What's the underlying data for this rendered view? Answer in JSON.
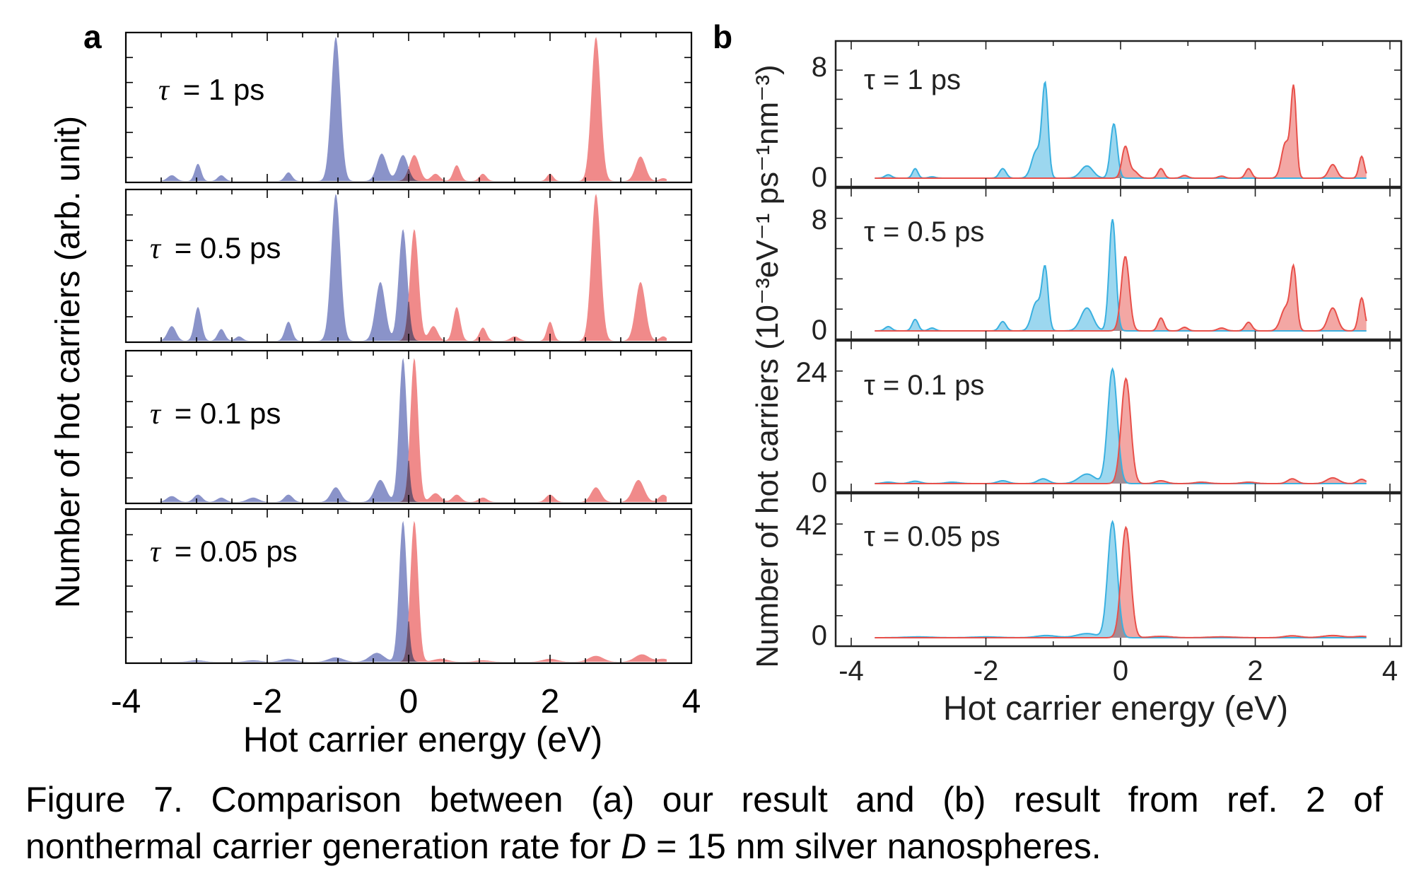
{
  "panels": [
    {
      "letter": "a",
      "ylabel": "Number of hot carriers (arb. unit)",
      "xlabel": "Hot carrier energy (eV)",
      "xticks": [
        "-4",
        "-2",
        "0",
        "2",
        "4"
      ],
      "subplots": [
        {
          "tau_symbol": "τ",
          "tau_rest": "= 1 ps"
        },
        {
          "tau_symbol": "τ",
          "tau_rest": "= 0.5 ps"
        },
        {
          "tau_symbol": "τ",
          "tau_rest": "= 0.1 ps"
        },
        {
          "tau_symbol": "τ",
          "tau_rest": "= 0.05 ps"
        }
      ]
    },
    {
      "letter": "b",
      "ylabel": "Number of hot carriers (10⁻³eV⁻¹ ps⁻¹nm⁻³)",
      "xlabel": "Hot carrier energy (eV)",
      "xticks": [
        "-4",
        "-2",
        "0",
        "2",
        "4"
      ],
      "subplots": [
        {
          "tau_label": "τ = 1 ps",
          "ytick_top": "8",
          "ytick_zero": "0"
        },
        {
          "tau_label": "τ = 0.5 ps",
          "ytick_top": "8",
          "ytick_zero": "0"
        },
        {
          "tau_label": "τ = 0.1 ps",
          "ytick_top": "24",
          "ytick_zero": "0"
        },
        {
          "tau_label": "τ = 0.05 ps",
          "ytick_top": "42",
          "ytick_zero": "0"
        }
      ]
    }
  ],
  "caption": {
    "line1": [
      "Figure",
      "7.",
      "Comparison",
      "between",
      "(a)",
      "our",
      "result",
      "and",
      "(b)",
      "result",
      "from",
      "ref.",
      "2",
      "of"
    ],
    "line2_before": "nonthermal carrier generation rate for ",
    "line2_italic": "D",
    "line2_after": " = 15 nm silver nanospheres."
  },
  "chart_data": [
    {
      "type": "area",
      "panel": "a",
      "xlabel": "Hot carrier energy (eV)",
      "ylabel": "Number of hot carriers (arb. unit)",
      "xlim": [
        -4,
        4
      ],
      "colors": {
        "hole": "#8a93c9",
        "electron": "#f08a8a",
        "overlap": "#5a4a6a"
      },
      "subplots": [
        {
          "tau_ps": 1,
          "ylim": [
            0,
            1
          ],
          "series": [
            {
              "name": "",
              "kind": "hole",
              "peaks": [
                [
                  -3.35,
                  0.04,
                  0.06
                ],
                [
                  -2.98,
                  0.12,
                  0.045
                ],
                [
                  -2.65,
                  0.04,
                  0.05
                ],
                [
                  -1.7,
                  0.06,
                  0.05
                ],
                [
                  -1.03,
                  1.0,
                  0.065
                ],
                [
                  -0.38,
                  0.19,
                  0.07
                ],
                [
                  -0.08,
                  0.18,
                  0.07
                ]
              ]
            },
            {
              "name": "",
              "kind": "electron",
              "peaks": [
                [
                  0.08,
                  0.18,
                  0.07
                ],
                [
                  0.38,
                  0.05,
                  0.06
                ],
                [
                  0.68,
                  0.11,
                  0.05
                ],
                [
                  1.05,
                  0.05,
                  0.05
                ],
                [
                  2.0,
                  0.05,
                  0.045
                ],
                [
                  2.65,
                  1.0,
                  0.065
                ],
                [
                  3.28,
                  0.17,
                  0.07
                ],
                [
                  3.6,
                  0.02,
                  0.05
                ]
              ]
            }
          ]
        },
        {
          "tau_ps": 0.5,
          "ylim": [
            0,
            1
          ],
          "series": [
            {
              "name": "",
              "kind": "hole",
              "peaks": [
                [
                  -3.35,
                  0.1,
                  0.06
                ],
                [
                  -2.98,
                  0.23,
                  0.05
                ],
                [
                  -2.65,
                  0.08,
                  0.05
                ],
                [
                  -2.4,
                  0.03,
                  0.05
                ],
                [
                  -1.7,
                  0.13,
                  0.05
                ],
                [
                  -1.03,
                  1.0,
                  0.065
                ],
                [
                  -0.4,
                  0.4,
                  0.07
                ],
                [
                  -0.08,
                  0.76,
                  0.06
                ]
              ]
            },
            {
              "name": "",
              "kind": "electron",
              "peaks": [
                [
                  0.08,
                  0.76,
                  0.06
                ],
                [
                  0.35,
                  0.1,
                  0.06
                ],
                [
                  0.68,
                  0.23,
                  0.05
                ],
                [
                  1.05,
                  0.09,
                  0.05
                ],
                [
                  1.5,
                  0.03,
                  0.06
                ],
                [
                  2.0,
                  0.13,
                  0.045
                ],
                [
                  2.65,
                  1.0,
                  0.065
                ],
                [
                  3.28,
                  0.4,
                  0.07
                ],
                [
                  3.6,
                  0.03,
                  0.05
                ]
              ]
            }
          ]
        },
        {
          "tau_ps": 0.1,
          "ylim": [
            0,
            1
          ],
          "series": [
            {
              "name": "",
              "kind": "hole",
              "peaks": [
                [
                  -3.35,
                  0.04,
                  0.07
                ],
                [
                  -2.98,
                  0.05,
                  0.06
                ],
                [
                  -2.65,
                  0.03,
                  0.06
                ],
                [
                  -2.2,
                  0.03,
                  0.08
                ],
                [
                  -1.7,
                  0.05,
                  0.06
                ],
                [
                  -1.03,
                  0.1,
                  0.07
                ],
                [
                  -0.4,
                  0.15,
                  0.08
                ],
                [
                  -0.08,
                  0.98,
                  0.055
                ]
              ]
            },
            {
              "name": "",
              "kind": "electron",
              "peaks": [
                [
                  0.08,
                  0.98,
                  0.055
                ],
                [
                  0.38,
                  0.06,
                  0.07
                ],
                [
                  0.68,
                  0.05,
                  0.06
                ],
                [
                  1.05,
                  0.03,
                  0.06
                ],
                [
                  2.0,
                  0.05,
                  0.06
                ],
                [
                  2.65,
                  0.1,
                  0.07
                ],
                [
                  3.25,
                  0.15,
                  0.08
                ],
                [
                  3.6,
                  0.05,
                  0.06
                ]
              ]
            }
          ]
        },
        {
          "tau_ps": 0.05,
          "ylim": [
            0,
            1
          ],
          "series": [
            {
              "name": "",
              "kind": "hole",
              "peaks": [
                [
                  -3.0,
                  0.01,
                  0.1
                ],
                [
                  -2.2,
                  0.01,
                  0.1
                ],
                [
                  -1.7,
                  0.02,
                  0.1
                ],
                [
                  -1.03,
                  0.03,
                  0.1
                ],
                [
                  -0.45,
                  0.06,
                  0.1
                ],
                [
                  -0.08,
                  0.95,
                  0.055
                ]
              ]
            },
            {
              "name": "",
              "kind": "electron",
              "peaks": [
                [
                  0.08,
                  0.95,
                  0.055
                ],
                [
                  0.45,
                  0.02,
                  0.1
                ],
                [
                  1.05,
                  0.01,
                  0.1
                ],
                [
                  2.0,
                  0.02,
                  0.1
                ],
                [
                  2.65,
                  0.04,
                  0.1
                ],
                [
                  3.3,
                  0.05,
                  0.1
                ],
                [
                  3.6,
                  0.02,
                  0.08
                ]
              ]
            }
          ]
        }
      ]
    },
    {
      "type": "area",
      "panel": "b",
      "xlabel": "Hot carrier energy (eV)",
      "ylabel": "Number of hot carriers (10⁻³eV⁻¹ ps⁻¹nm⁻³)",
      "xlim": [
        -4,
        4
      ],
      "colors": {
        "hole": "#3ab0e0",
        "electron": "#e8504a",
        "overlap": "#8a8890"
      },
      "subplots": [
        {
          "tau_ps": 1,
          "ylim": [
            0,
            8
          ],
          "series": [
            {
              "name": "",
              "kind": "hole",
              "peaks": [
                [
                  -3.45,
                  0.25,
                  0.05
                ],
                [
                  -3.05,
                  0.7,
                  0.04
                ],
                [
                  -2.8,
                  0.1,
                  0.05
                ],
                [
                  -1.75,
                  0.7,
                  0.05
                ],
                [
                  -1.25,
                  2.0,
                  0.07
                ],
                [
                  -1.12,
                  6.7,
                  0.045
                ],
                [
                  -0.5,
                  0.9,
                  0.09
                ],
                [
                  -0.1,
                  4.0,
                  0.05
                ]
              ]
            },
            {
              "name": "",
              "kind": "electron",
              "peaks": [
                [
                  0.07,
                  2.3,
                  0.05
                ],
                [
                  0.2,
                  0.5,
                  0.06
                ],
                [
                  0.6,
                  0.7,
                  0.045
                ],
                [
                  0.95,
                  0.2,
                  0.05
                ],
                [
                  1.5,
                  0.15,
                  0.05
                ],
                [
                  1.9,
                  0.7,
                  0.045
                ],
                [
                  2.45,
                  2.6,
                  0.06
                ],
                [
                  2.57,
                  6.5,
                  0.04
                ],
                [
                  3.15,
                  1.0,
                  0.06
                ],
                [
                  3.58,
                  1.6,
                  0.04
                ]
              ]
            }
          ]
        },
        {
          "tau_ps": 0.5,
          "ylim": [
            0,
            8
          ],
          "series": [
            {
              "name": "",
              "kind": "hole",
              "peaks": [
                [
                  -3.45,
                  0.3,
                  0.05
                ],
                [
                  -3.05,
                  0.8,
                  0.045
                ],
                [
                  -2.8,
                  0.2,
                  0.05
                ],
                [
                  -1.75,
                  0.65,
                  0.05
                ],
                [
                  -1.25,
                  2.0,
                  0.07
                ],
                [
                  -1.12,
                  4.2,
                  0.045
                ],
                [
                  -0.5,
                  1.6,
                  0.09
                ],
                [
                  -0.12,
                  7.8,
                  0.05
                ]
              ]
            },
            {
              "name": "",
              "kind": "electron",
              "peaks": [
                [
                  0.07,
                  5.2,
                  0.06
                ],
                [
                  0.6,
                  0.9,
                  0.045
                ],
                [
                  0.95,
                  0.25,
                  0.05
                ],
                [
                  1.5,
                  0.2,
                  0.06
                ],
                [
                  1.9,
                  0.6,
                  0.05
                ],
                [
                  2.45,
                  1.6,
                  0.07
                ],
                [
                  2.57,
                  4.2,
                  0.045
                ],
                [
                  3.15,
                  1.6,
                  0.07
                ],
                [
                  3.58,
                  2.3,
                  0.045
                ]
              ]
            }
          ]
        },
        {
          "tau_ps": 0.1,
          "ylim": [
            0,
            24
          ],
          "series": [
            {
              "name": "",
              "kind": "hole",
              "peaks": [
                [
                  -3.45,
                  0.3,
                  0.08
                ],
                [
                  -3.05,
                  0.5,
                  0.08
                ],
                [
                  -2.5,
                  0.3,
                  0.1
                ],
                [
                  -1.75,
                  0.6,
                  0.08
                ],
                [
                  -1.15,
                  1.0,
                  0.08
                ],
                [
                  -0.5,
                  2.0,
                  0.12
                ],
                [
                  -0.12,
                  24.0,
                  0.07
                ]
              ]
            },
            {
              "name": "",
              "kind": "electron",
              "peaks": [
                [
                  0.08,
                  22.0,
                  0.07
                ],
                [
                  0.6,
                  0.6,
                  0.08
                ],
                [
                  1.2,
                  0.3,
                  0.1
                ],
                [
                  1.9,
                  0.3,
                  0.1
                ],
                [
                  2.55,
                  1.0,
                  0.07
                ],
                [
                  3.15,
                  1.2,
                  0.09
                ],
                [
                  3.58,
                  0.9,
                  0.06
                ]
              ]
            }
          ]
        },
        {
          "tau_ps": 0.05,
          "ylim": [
            0,
            42
          ],
          "series": [
            {
              "name": "",
              "kind": "hole",
              "peaks": [
                [
                  -3.0,
                  0.3,
                  0.2
                ],
                [
                  -2.0,
                  0.3,
                  0.2
                ],
                [
                  -1.1,
                  0.8,
                  0.15
                ],
                [
                  -0.5,
                  1.5,
                  0.15
                ],
                [
                  -0.12,
                  42.0,
                  0.07
                ]
              ]
            },
            {
              "name": "",
              "kind": "electron",
              "peaks": [
                [
                  0.08,
                  40.0,
                  0.07
                ],
                [
                  0.6,
                  0.5,
                  0.15
                ],
                [
                  1.5,
                  0.3,
                  0.2
                ],
                [
                  2.55,
                  0.7,
                  0.12
                ],
                [
                  3.15,
                  0.8,
                  0.15
                ],
                [
                  3.58,
                  0.5,
                  0.1
                ]
              ]
            }
          ]
        }
      ]
    }
  ]
}
